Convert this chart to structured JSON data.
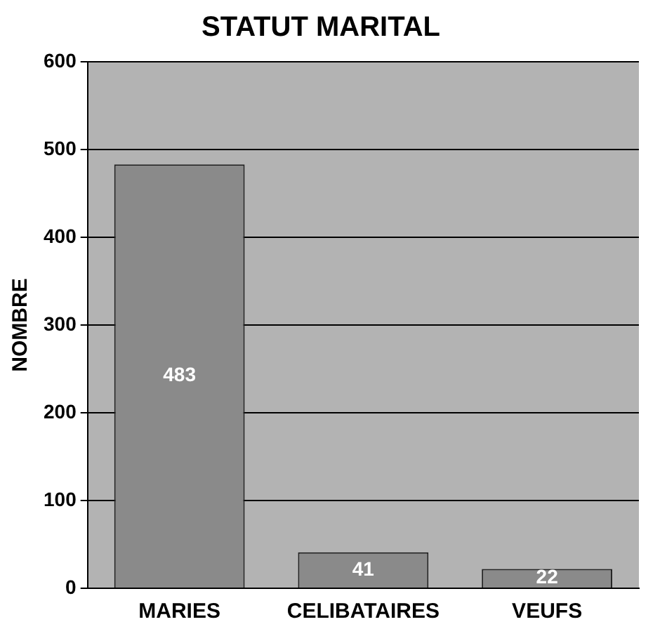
{
  "chart_data": {
    "type": "bar",
    "title": "STATUT MARITAL",
    "ylabel": "NOMBRE",
    "categories": [
      "MARIES",
      "CELIBATAIRES",
      "VEUFS"
    ],
    "values": [
      483,
      41,
      22
    ],
    "color": "#8a8a8a",
    "ylim": [
      0,
      600
    ],
    "yticks": [
      0,
      100,
      200,
      300,
      400,
      500,
      600
    ],
    "grid": "y",
    "data_labels": true
  }
}
